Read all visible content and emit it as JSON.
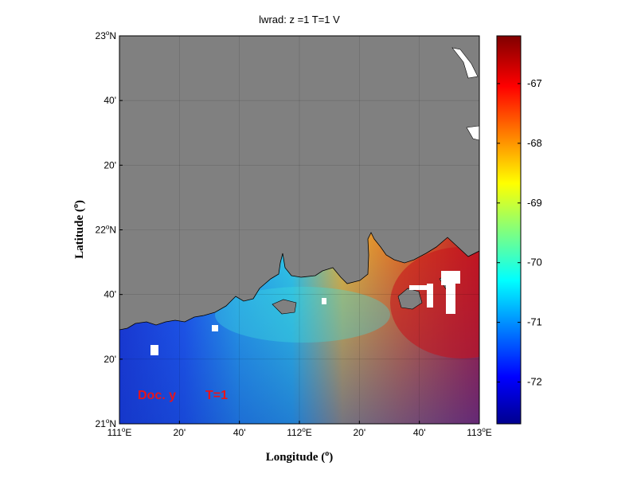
{
  "title": "lwrad: z =1   T=1 V",
  "xlabel": "Longitude (",
  "xlabel_sup": "o",
  "xlabel_close": ")",
  "ylabel": "Latitude (",
  "ylabel_sup": "o",
  "ylabel_close": ")",
  "annotation": {
    "label": "Doc. y",
    "time": "T=1",
    "color": "#e8141b"
  },
  "map": {
    "lon_range": [
      111.0,
      113.0
    ],
    "lat_range": [
      21.0,
      23.0
    ],
    "land_color": "#808080",
    "grid": true,
    "x_ticks": [
      {
        "main": "111",
        "sup": "o",
        "suffix": "E"
      },
      {
        "main": "20'"
      },
      {
        "main": "40'"
      },
      {
        "main": "112",
        "sup": "o",
        "suffix": "E"
      },
      {
        "main": "20'"
      },
      {
        "main": "40'"
      },
      {
        "main": "113",
        "sup": "o",
        "suffix": "E"
      }
    ],
    "y_ticks": [
      {
        "main": "21",
        "sup": "o",
        "suffix": "N"
      },
      {
        "main": "20'"
      },
      {
        "main": "40'"
      },
      {
        "main": "22",
        "sup": "o",
        "suffix": "N"
      },
      {
        "main": "20'"
      },
      {
        "main": "40'"
      },
      {
        "main": "23",
        "sup": "o",
        "suffix": "N"
      }
    ]
  },
  "colorbar": {
    "range": [
      -72.7,
      -66.2
    ],
    "tick_values": [
      -72,
      -71,
      -70,
      -69,
      -68,
      -67
    ],
    "tick_labels": [
      "-72",
      "-71",
      "-70",
      "-69",
      "-68",
      "-67"
    ],
    "colormap": "jet"
  }
}
